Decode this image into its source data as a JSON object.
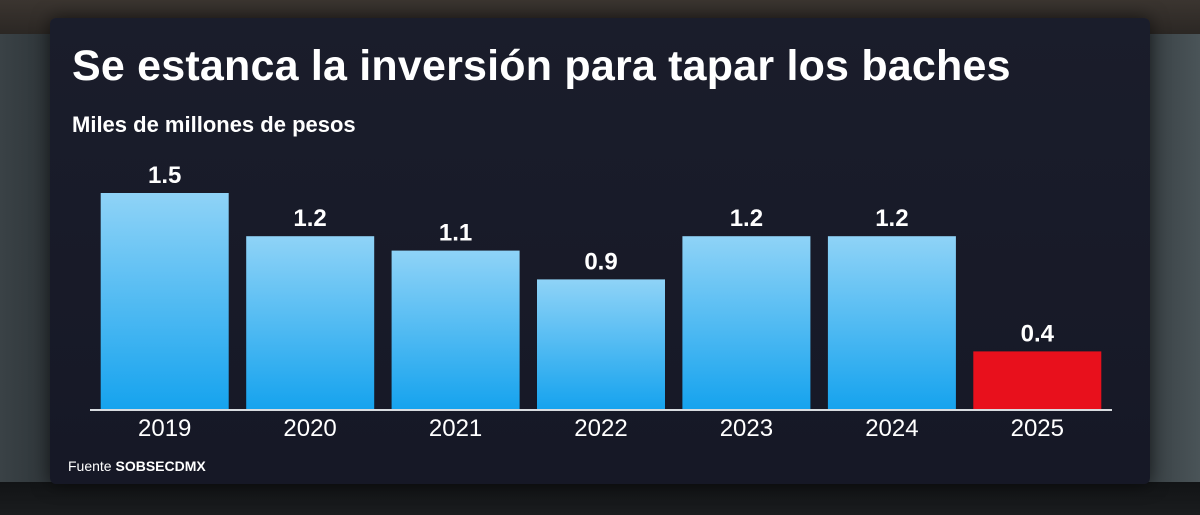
{
  "title": "Se estanca la inversión para tapar los baches",
  "subtitle": "Miles de millones de pesos",
  "source": {
    "label": "Fuente",
    "name": "SOBSECDMX"
  },
  "colors": {
    "bar_top": "#8fd3f7",
    "bar_bottom": "#16a3ee",
    "highlight": "#e8101c",
    "text": "#ffffff"
  },
  "chart_data": {
    "type": "bar",
    "title": "Se estanca la inversión para tapar los baches",
    "ylabel": "Miles de millones de pesos",
    "xlabel": "",
    "categories": [
      "2019",
      "2020",
      "2021",
      "2022",
      "2023",
      "2024",
      "2025"
    ],
    "values": [
      1.5,
      1.2,
      1.1,
      0.9,
      1.2,
      1.2,
      0.4
    ],
    "value_labels": [
      "1.5",
      "1.2",
      "1.1",
      "0.9",
      "1.2",
      "1.2",
      "0.4"
    ],
    "highlighted_category": "2025",
    "ylim": [
      0,
      1.5
    ],
    "grid": false,
    "legend": "none"
  }
}
